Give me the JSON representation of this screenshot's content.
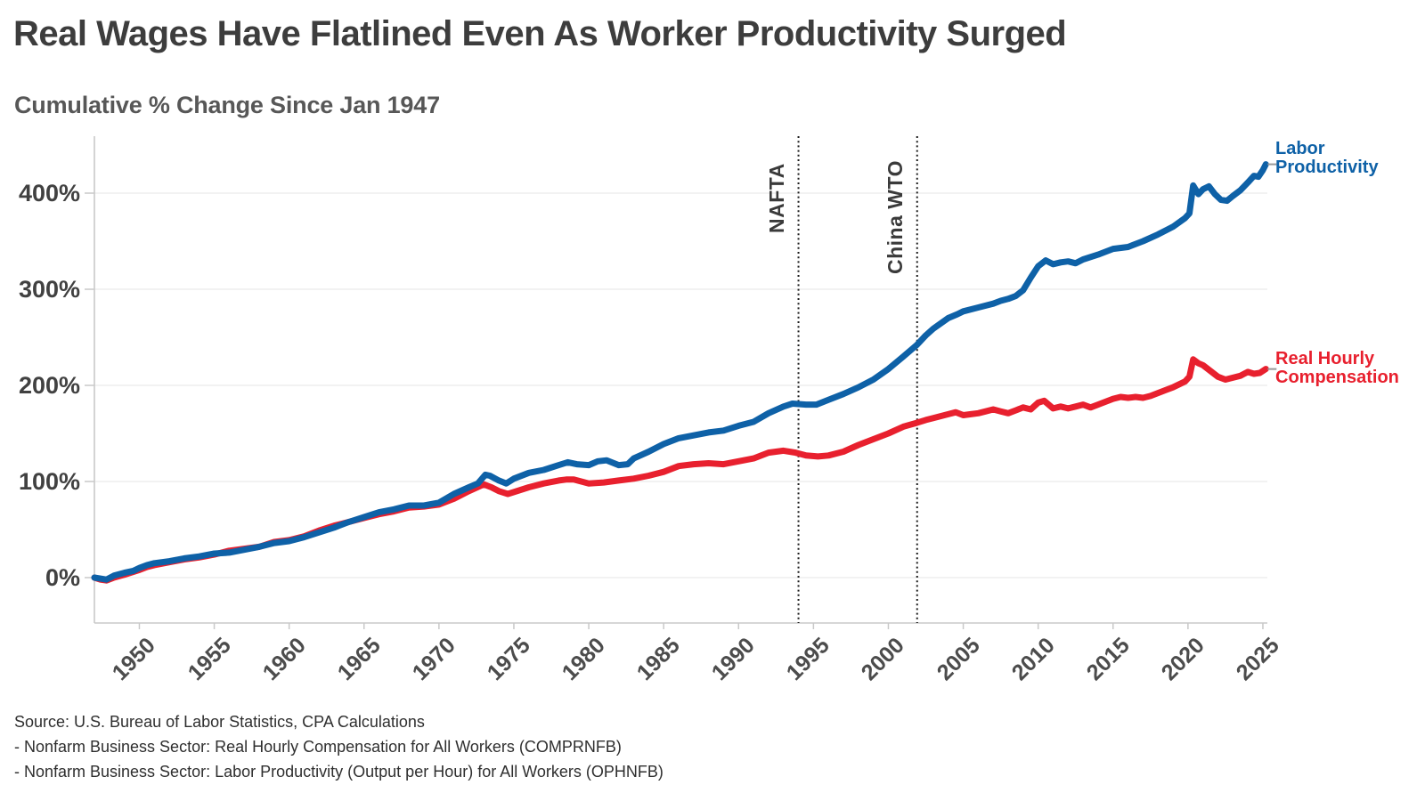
{
  "title": "Real Wages Have Flatlined Even As Worker Productivity Surged",
  "subtitle": "Cumulative % Change Since Jan 1947",
  "source_lines": [
    "Source: U.S. Bureau of Labor Statistics, CPA Calculations",
    "- Nonfarm Business Sector: Real Hourly Compensation for All Workers (COMPRNFB)",
    "- Nonfarm Business Sector: Labor Productivity (Output per Hour) for All Workers (OPHNFB)"
  ],
  "series_labels": {
    "productivity": [
      "Labor",
      "Productivity"
    ],
    "compensation": [
      "Real Hourly",
      "Compensation"
    ]
  },
  "colors": {
    "productivity": "#0e61a7",
    "compensation": "#e8202e",
    "grid": "#ededed",
    "axis": "#c9c9c9",
    "annotation_line": "#1b1b1b",
    "annotation_text": "#3a3a3a",
    "leader_dash": "#999999",
    "title_text": "#3d3d3d",
    "subtitle_text": "#575757",
    "tick_text": "#414141",
    "source_text": "#2f2f2f"
  },
  "chart_data": {
    "type": "line",
    "title": "Real Wages Have Flatlined Even As Worker Productivity Surged",
    "subtitle": "Cumulative % Change Since Jan 1947",
    "xlabel": "",
    "ylabel": "Cumulative % change since Jan 1947",
    "xlim": [
      1947,
      2025.3
    ],
    "ylim": [
      -47,
      460
    ],
    "grid": "horizontal",
    "legend_position": "right-end-of-line",
    "y_tick_values": [
      0,
      100,
      200,
      300,
      400
    ],
    "y_tick_labels": [
      "0%",
      "100%",
      "200%",
      "300%",
      "400%"
    ],
    "x_ticks": [
      1950,
      1955,
      1960,
      1965,
      1970,
      1975,
      1980,
      1985,
      1990,
      1995,
      2000,
      2005,
      2010,
      2015,
      2020,
      2025
    ],
    "annotations": [
      {
        "label": "NAFTA",
        "year": 1994.0
      },
      {
        "label": "China WTO",
        "year": 2001.92
      }
    ],
    "series": [
      {
        "name": "Real Hourly Compensation",
        "color_key": "compensation",
        "points": [
          [
            1947,
            0
          ],
          [
            1947.4,
            -2
          ],
          [
            1947.8,
            -3
          ],
          [
            1948.3,
            0
          ],
          [
            1949,
            3
          ],
          [
            1949.6,
            6
          ],
          [
            1950,
            8
          ],
          [
            1950.5,
            11
          ],
          [
            1951,
            13
          ],
          [
            1952,
            16
          ],
          [
            1953,
            19
          ],
          [
            1954,
            21
          ],
          [
            1955,
            24
          ],
          [
            1956,
            28
          ],
          [
            1957,
            30
          ],
          [
            1958,
            32
          ],
          [
            1959,
            37
          ],
          [
            1960,
            39
          ],
          [
            1961,
            43
          ],
          [
            1962,
            49
          ],
          [
            1963,
            54
          ],
          [
            1964,
            58
          ],
          [
            1965,
            62
          ],
          [
            1966,
            66
          ],
          [
            1967,
            69
          ],
          [
            1968,
            73
          ],
          [
            1969,
            74
          ],
          [
            1970,
            76
          ],
          [
            1971,
            82
          ],
          [
            1972,
            90
          ],
          [
            1972.7,
            95
          ],
          [
            1973,
            97
          ],
          [
            1973.5,
            94
          ],
          [
            1974,
            90
          ],
          [
            1974.6,
            87
          ],
          [
            1975,
            89
          ],
          [
            1976,
            94
          ],
          [
            1977,
            98
          ],
          [
            1978,
            101
          ],
          [
            1978.5,
            102
          ],
          [
            1979,
            102
          ],
          [
            1980,
            98
          ],
          [
            1981,
            99
          ],
          [
            1982,
            101
          ],
          [
            1983,
            103
          ],
          [
            1984,
            106
          ],
          [
            1985,
            110
          ],
          [
            1986,
            116
          ],
          [
            1987,
            118
          ],
          [
            1988,
            119
          ],
          [
            1989,
            118
          ],
          [
            1990,
            121
          ],
          [
            1991,
            124
          ],
          [
            1992,
            130
          ],
          [
            1993,
            132
          ],
          [
            1993.8,
            130
          ],
          [
            1994.5,
            127
          ],
          [
            1995.3,
            126
          ],
          [
            1996,
            127
          ],
          [
            1997,
            131
          ],
          [
            1998,
            138
          ],
          [
            1999,
            144
          ],
          [
            2000,
            150
          ],
          [
            2001,
            157
          ],
          [
            2001.9,
            161
          ],
          [
            2002.5,
            164
          ],
          [
            2003,
            166
          ],
          [
            2004,
            170
          ],
          [
            2004.5,
            172
          ],
          [
            2005,
            169
          ],
          [
            2005.5,
            170
          ],
          [
            2006,
            171
          ],
          [
            2006.5,
            173
          ],
          [
            2007,
            175
          ],
          [
            2007.5,
            173
          ],
          [
            2008,
            171
          ],
          [
            2008.5,
            174
          ],
          [
            2009,
            177
          ],
          [
            2009.5,
            175
          ],
          [
            2010,
            182
          ],
          [
            2010.4,
            184
          ],
          [
            2011,
            176
          ],
          [
            2011.5,
            178
          ],
          [
            2012,
            176
          ],
          [
            2012.5,
            178
          ],
          [
            2013,
            180
          ],
          [
            2013.5,
            177
          ],
          [
            2014,
            180
          ],
          [
            2014.5,
            183
          ],
          [
            2015,
            186
          ],
          [
            2015.5,
            188
          ],
          [
            2016,
            187
          ],
          [
            2016.5,
            188
          ],
          [
            2017,
            187
          ],
          [
            2017.5,
            189
          ],
          [
            2018,
            192
          ],
          [
            2018.5,
            195
          ],
          [
            2019,
            198
          ],
          [
            2019.8,
            204
          ],
          [
            2020.1,
            209
          ],
          [
            2020.35,
            227
          ],
          [
            2020.7,
            223
          ],
          [
            2021,
            221
          ],
          [
            2021.5,
            215
          ],
          [
            2022,
            209
          ],
          [
            2022.5,
            206
          ],
          [
            2023,
            208
          ],
          [
            2023.5,
            210
          ],
          [
            2024,
            214
          ],
          [
            2024.4,
            212
          ],
          [
            2024.8,
            213
          ],
          [
            2025.2,
            217
          ]
        ]
      },
      {
        "name": "Labor Productivity",
        "color_key": "productivity",
        "points": [
          [
            1947,
            0
          ],
          [
            1947.4,
            -1
          ],
          [
            1947.8,
            -2
          ],
          [
            1948.3,
            2
          ],
          [
            1949,
            5
          ],
          [
            1949.6,
            7
          ],
          [
            1950,
            10
          ],
          [
            1950.5,
            13
          ],
          [
            1951,
            15
          ],
          [
            1952,
            17
          ],
          [
            1953,
            20
          ],
          [
            1954,
            22
          ],
          [
            1955,
            25
          ],
          [
            1956,
            26
          ],
          [
            1957,
            29
          ],
          [
            1958,
            32
          ],
          [
            1959,
            36
          ],
          [
            1960,
            38
          ],
          [
            1961,
            42
          ],
          [
            1962,
            47
          ],
          [
            1963,
            52
          ],
          [
            1964,
            58
          ],
          [
            1965,
            63
          ],
          [
            1966,
            68
          ],
          [
            1967,
            71
          ],
          [
            1968,
            75
          ],
          [
            1969,
            75
          ],
          [
            1970,
            78
          ],
          [
            1971,
            87
          ],
          [
            1972,
            94
          ],
          [
            1972.6,
            98
          ],
          [
            1973.1,
            107
          ],
          [
            1973.4,
            106
          ],
          [
            1974,
            101
          ],
          [
            1974.5,
            98
          ],
          [
            1975,
            103
          ],
          [
            1976,
            109
          ],
          [
            1977,
            112
          ],
          [
            1978,
            117
          ],
          [
            1978.6,
            120
          ],
          [
            1979.2,
            118
          ],
          [
            1980,
            117
          ],
          [
            1980.6,
            121
          ],
          [
            1981.2,
            122
          ],
          [
            1982,
            117
          ],
          [
            1982.6,
            118
          ],
          [
            1983,
            124
          ],
          [
            1984,
            131
          ],
          [
            1985,
            139
          ],
          [
            1986,
            145
          ],
          [
            1987,
            148
          ],
          [
            1988,
            151
          ],
          [
            1989,
            153
          ],
          [
            1990,
            158
          ],
          [
            1991,
            162
          ],
          [
            1992,
            171
          ],
          [
            1993,
            178
          ],
          [
            1993.6,
            181
          ],
          [
            1994.5,
            180
          ],
          [
            1995.2,
            180
          ],
          [
            1996,
            185
          ],
          [
            1997,
            191
          ],
          [
            1998,
            198
          ],
          [
            1999,
            206
          ],
          [
            2000,
            217
          ],
          [
            2001,
            230
          ],
          [
            2001.9,
            242
          ],
          [
            2002.5,
            252
          ],
          [
            2003,
            259
          ],
          [
            2004,
            270
          ],
          [
            2004.6,
            274
          ],
          [
            2005,
            277
          ],
          [
            2006,
            281
          ],
          [
            2007,
            285
          ],
          [
            2007.5,
            288
          ],
          [
            2008,
            290
          ],
          [
            2008.5,
            293
          ],
          [
            2009,
            299
          ],
          [
            2009.5,
            312
          ],
          [
            2010,
            324
          ],
          [
            2010.5,
            330
          ],
          [
            2011,
            326
          ],
          [
            2011.5,
            328
          ],
          [
            2012,
            329
          ],
          [
            2012.5,
            327
          ],
          [
            2013,
            331
          ],
          [
            2014,
            336
          ],
          [
            2014.5,
            339
          ],
          [
            2015,
            342
          ],
          [
            2016,
            344
          ],
          [
            2017,
            350
          ],
          [
            2018,
            357
          ],
          [
            2019,
            365
          ],
          [
            2019.8,
            374
          ],
          [
            2020.1,
            379
          ],
          [
            2020.35,
            408
          ],
          [
            2020.7,
            399
          ],
          [
            2021,
            404
          ],
          [
            2021.4,
            407
          ],
          [
            2021.8,
            399
          ],
          [
            2022.2,
            393
          ],
          [
            2022.6,
            392
          ],
          [
            2023,
            397
          ],
          [
            2023.5,
            403
          ],
          [
            2024,
            411
          ],
          [
            2024.4,
            418
          ],
          [
            2024.7,
            417
          ],
          [
            2025,
            424
          ],
          [
            2025.2,
            430
          ]
        ]
      }
    ]
  }
}
